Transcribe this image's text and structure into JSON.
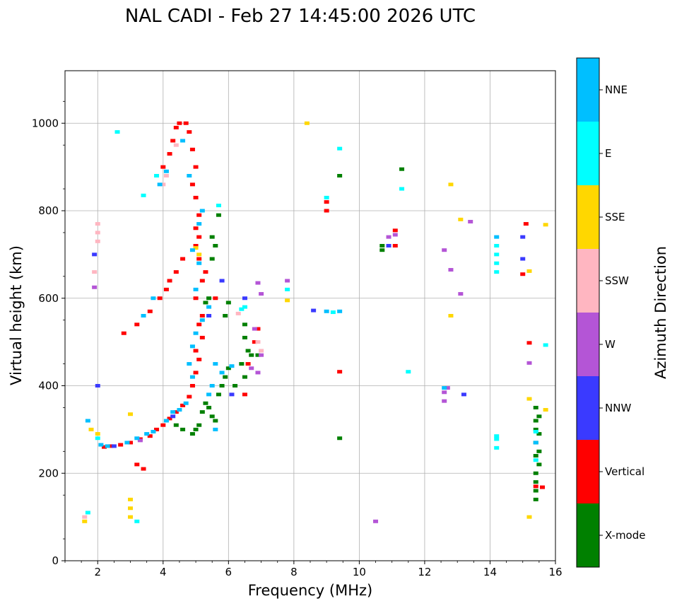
{
  "chart_data": {
    "type": "scatter",
    "title": "NAL CADI - Feb 27 14:45:00 2026 UTC",
    "xlabel": "Frequency (MHz)",
    "ylabel": "Virtual height (km)",
    "xlim": [
      1,
      16
    ],
    "ylim": [
      0,
      1120
    ],
    "x_ticks": [
      2,
      4,
      6,
      8,
      10,
      12,
      14,
      16
    ],
    "y_ticks": [
      0,
      200,
      400,
      600,
      800,
      1000
    ],
    "grid": true,
    "colorbar": {
      "label": "Azimuth Direction",
      "categories": [
        "X-mode",
        "Vertical",
        "NNW",
        "W",
        "SSW",
        "SSE",
        "E",
        "NNE"
      ],
      "colors": [
        "#008000",
        "#ff0000",
        "#3a3aff",
        "#b455d6",
        "#ffb6c1",
        "#ffd700",
        "#00ffff",
        "#00bfff"
      ]
    },
    "series": [
      {
        "name": "X-mode",
        "points": [
          [
            5.3,
            360
          ],
          [
            5.4,
            350
          ],
          [
            5.5,
            330
          ],
          [
            5.6,
            320
          ],
          [
            5.2,
            340
          ],
          [
            5.0,
            300
          ],
          [
            5.1,
            310
          ],
          [
            5.7,
            380
          ],
          [
            5.9,
            420
          ],
          [
            6.0,
            440
          ],
          [
            5.8,
            400
          ],
          [
            6.2,
            400
          ],
          [
            6.5,
            540
          ],
          [
            6.5,
            510
          ],
          [
            6.6,
            480
          ],
          [
            6.4,
            450
          ],
          [
            6.5,
            420
          ],
          [
            6.7,
            470
          ],
          [
            6.9,
            470
          ],
          [
            5.5,
            690
          ],
          [
            5.6,
            720
          ],
          [
            5.5,
            740
          ],
          [
            5.7,
            790
          ],
          [
            5.4,
            600
          ],
          [
            10.7,
            710
          ],
          [
            10.7,
            720
          ],
          [
            11.3,
            895
          ],
          [
            9.4,
            880
          ],
          [
            9.4,
            280
          ],
          [
            15.4,
            350
          ],
          [
            15.4,
            320
          ],
          [
            15.4,
            300
          ],
          [
            15.4,
            270
          ],
          [
            15.4,
            240
          ],
          [
            15.4,
            200
          ],
          [
            15.4,
            180
          ],
          [
            15.4,
            160
          ],
          [
            15.4,
            140
          ],
          [
            15.5,
            330
          ],
          [
            15.5,
            290
          ],
          [
            15.5,
            250
          ],
          [
            15.5,
            220
          ],
          [
            4.6,
            300
          ],
          [
            4.4,
            310
          ],
          [
            4.9,
            290
          ],
          [
            5.3,
            590
          ],
          [
            6.0,
            590
          ],
          [
            5.9,
            560
          ]
        ]
      },
      {
        "name": "Vertical",
        "points": [
          [
            2.2,
            260
          ],
          [
            2.4,
            262
          ],
          [
            2.7,
            265
          ],
          [
            3.0,
            270
          ],
          [
            3.3,
            278
          ],
          [
            3.6,
            285
          ],
          [
            3.8,
            300
          ],
          [
            4.0,
            310
          ],
          [
            4.2,
            325
          ],
          [
            4.4,
            340
          ],
          [
            4.6,
            355
          ],
          [
            4.8,
            375
          ],
          [
            4.9,
            400
          ],
          [
            5.0,
            430
          ],
          [
            5.1,
            460
          ],
          [
            5.0,
            480
          ],
          [
            5.2,
            510
          ],
          [
            5.1,
            540
          ],
          [
            5.2,
            560
          ],
          [
            5.0,
            600
          ],
          [
            5.2,
            640
          ],
          [
            5.3,
            660
          ],
          [
            5.1,
            690
          ],
          [
            5.0,
            720
          ],
          [
            5.1,
            740
          ],
          [
            5.0,
            760
          ],
          [
            5.1,
            790
          ],
          [
            5.0,
            830
          ],
          [
            4.9,
            860
          ],
          [
            5.0,
            900
          ],
          [
            4.9,
            940
          ],
          [
            4.8,
            980
          ],
          [
            4.7,
            1000
          ],
          [
            4.2,
            640
          ],
          [
            4.4,
            660
          ],
          [
            4.6,
            690
          ],
          [
            3.6,
            570
          ],
          [
            3.9,
            600
          ],
          [
            4.1,
            620
          ],
          [
            3.2,
            540
          ],
          [
            2.8,
            520
          ],
          [
            4.0,
            900
          ],
          [
            4.2,
            930
          ],
          [
            4.3,
            960
          ],
          [
            4.4,
            990
          ],
          [
            4.5,
            1000
          ],
          [
            9.0,
            820
          ],
          [
            9.0,
            800
          ],
          [
            11.1,
            755
          ],
          [
            11.1,
            720
          ],
          [
            9.4,
            432
          ],
          [
            15.0,
            655
          ],
          [
            15.2,
            498
          ],
          [
            6.6,
            450
          ],
          [
            6.5,
            380
          ],
          [
            6.8,
            500
          ],
          [
            6.9,
            530
          ],
          [
            5.6,
            600
          ],
          [
            3.2,
            220
          ],
          [
            3.4,
            210
          ],
          [
            15.1,
            770
          ],
          [
            15.4,
            170
          ],
          [
            15.6,
            168
          ]
        ]
      },
      {
        "name": "NNW",
        "points": [
          [
            1.9,
            700
          ],
          [
            2.0,
            400
          ],
          [
            2.5,
            262
          ],
          [
            4.3,
            330
          ],
          [
            5.4,
            560
          ],
          [
            5.8,
            640
          ],
          [
            6.5,
            600
          ],
          [
            8.6,
            572
          ],
          [
            10.9,
            720
          ],
          [
            13.2,
            380
          ],
          [
            15.0,
            690
          ],
          [
            15.0,
            740
          ],
          [
            6.1,
            380
          ]
        ]
      },
      {
        "name": "W",
        "points": [
          [
            1.9,
            625
          ],
          [
            3.3,
            275
          ],
          [
            6.7,
            440
          ],
          [
            6.9,
            430
          ],
          [
            7.0,
            470
          ],
          [
            6.8,
            530
          ],
          [
            7.0,
            610
          ],
          [
            6.9,
            635
          ],
          [
            7.8,
            640
          ],
          [
            10.5,
            90
          ],
          [
            10.9,
            740
          ],
          [
            11.1,
            745
          ],
          [
            12.6,
            710
          ],
          [
            12.8,
            665
          ],
          [
            13.1,
            610
          ],
          [
            13.4,
            775
          ],
          [
            12.7,
            395
          ],
          [
            12.6,
            385
          ],
          [
            12.6,
            365
          ],
          [
            15.2,
            452
          ]
        ]
      },
      {
        "name": "SSW",
        "points": [
          [
            2.0,
            770
          ],
          [
            2.0,
            750
          ],
          [
            2.0,
            730
          ],
          [
            1.9,
            660
          ],
          [
            4.4,
            950
          ],
          [
            4.1,
            880
          ],
          [
            4.0,
            860
          ],
          [
            6.3,
            565
          ],
          [
            6.9,
            500
          ],
          [
            1.6,
            100
          ],
          [
            7.0,
            480
          ]
        ]
      },
      {
        "name": "SSE",
        "points": [
          [
            1.6,
            90
          ],
          [
            3.0,
            120
          ],
          [
            3.0,
            100
          ],
          [
            3.0,
            140
          ],
          [
            3.0,
            335
          ],
          [
            1.8,
            300
          ],
          [
            5.1,
            700
          ],
          [
            5.0,
            715
          ],
          [
            8.4,
            1000
          ],
          [
            7.8,
            595
          ],
          [
            12.8,
            860
          ],
          [
            12.8,
            560
          ],
          [
            13.1,
            780
          ],
          [
            15.2,
            100
          ],
          [
            15.2,
            370
          ],
          [
            15.2,
            662
          ],
          [
            15.7,
            345
          ],
          [
            15.7,
            768
          ],
          [
            2.0,
            290
          ]
        ]
      },
      {
        "name": "E",
        "points": [
          [
            1.7,
            110
          ],
          [
            2.0,
            280
          ],
          [
            3.2,
            90
          ],
          [
            5.7,
            812
          ],
          [
            6.5,
            580
          ],
          [
            6.4,
            575
          ],
          [
            7.8,
            620
          ],
          [
            9.4,
            942
          ],
          [
            11.3,
            850
          ],
          [
            11.5,
            432
          ],
          [
            14.2,
            720
          ],
          [
            14.2,
            700
          ],
          [
            14.2,
            680
          ],
          [
            14.2,
            660
          ],
          [
            14.2,
            285
          ],
          [
            14.2,
            278
          ],
          [
            14.2,
            258
          ],
          [
            15.4,
            295
          ],
          [
            15.4,
            230
          ],
          [
            15.7,
            493
          ],
          [
            9.0,
            830
          ],
          [
            9.2,
            568
          ],
          [
            3.4,
            835
          ],
          [
            2.6,
            980
          ],
          [
            3.8,
            880
          ]
        ]
      },
      {
        "name": "NNE",
        "points": [
          [
            1.7,
            320
          ],
          [
            2.1,
            265
          ],
          [
            2.3,
            262
          ],
          [
            2.9,
            270
          ],
          [
            3.2,
            280
          ],
          [
            3.5,
            290
          ],
          [
            3.7,
            295
          ],
          [
            4.1,
            320
          ],
          [
            4.3,
            340
          ],
          [
            4.5,
            345
          ],
          [
            4.7,
            360
          ],
          [
            4.9,
            420
          ],
          [
            4.8,
            450
          ],
          [
            4.9,
            490
          ],
          [
            5.0,
            520
          ],
          [
            5.2,
            550
          ],
          [
            5.4,
            580
          ],
          [
            5.0,
            620
          ],
          [
            5.1,
            680
          ],
          [
            4.9,
            710
          ],
          [
            5.1,
            770
          ],
          [
            5.2,
            800
          ],
          [
            4.8,
            880
          ],
          [
            4.6,
            960
          ],
          [
            4.1,
            890
          ],
          [
            3.9,
            860
          ],
          [
            3.7,
            600
          ],
          [
            3.4,
            560
          ],
          [
            5.8,
            430
          ],
          [
            5.6,
            450
          ],
          [
            5.5,
            400
          ],
          [
            5.4,
            380
          ],
          [
            6.1,
            445
          ],
          [
            5.6,
            300
          ],
          [
            9.0,
            570
          ],
          [
            9.4,
            570
          ],
          [
            12.6,
            395
          ],
          [
            14.2,
            740
          ],
          [
            15.4,
            270
          ]
        ]
      }
    ]
  }
}
